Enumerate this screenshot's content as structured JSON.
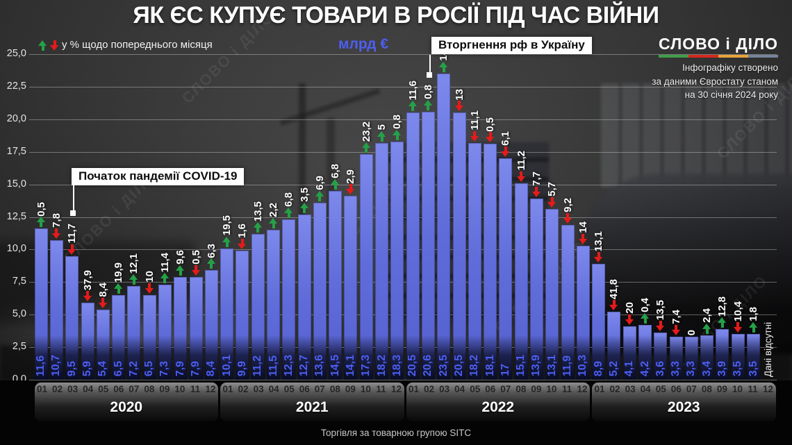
{
  "title": "ЯК ЄС КУПУЄ ТОВАРИ В РОСІЇ ПІД ЧАС ВІЙНИ",
  "legend": {
    "pct_note": "у % щодо попереднього місяця",
    "unit_label": "млрд €"
  },
  "logo": {
    "text": "СЛОВО і ДІЛО",
    "underline_colors": [
      "#3f9e4a",
      "#d6281e",
      "#e8a33b",
      "#76839b"
    ]
  },
  "source_note": {
    "lines": [
      "Інфографіку створено",
      "за даними Євростату станом",
      "на 30 січня 2024 року"
    ]
  },
  "annotations": {
    "covid": "Початок пандемії COVID-19",
    "invasion": "Вторгнення рф в Україну"
  },
  "footer": "Торгівля за товарною групою SITC",
  "colors": {
    "bar": "#5f6cd9",
    "up_arrow": "#24a148",
    "down_arrow": "#e51a1a",
    "value_text": "#4d5ef2",
    "unit_text": "#4d5ff0"
  },
  "chart_data": {
    "type": "bar",
    "title": "ЯК ЄС КУПУЄ ТОВАРИ В РОСІЇ ПІД ЧАС ВІЙНИ",
    "unit": "млрд €",
    "pct_note": "у % щодо попереднього місяця",
    "ylim": [
      0,
      25
    ],
    "ytick_step": 2.5,
    "yticks": [
      "25,0",
      "22,5",
      "20,0",
      "17,5",
      "15,0",
      "12,5",
      "10,0",
      "7,5",
      "5,0",
      "2,5",
      "0,0"
    ],
    "grid": true,
    "legend_position": "top-left",
    "no_data_label": "Дані відсутні",
    "months": [
      "01",
      "02",
      "03",
      "04",
      "05",
      "06",
      "07",
      "08",
      "09",
      "10",
      "11",
      "12"
    ],
    "groups": [
      {
        "year": "2020",
        "values": [
          11.6,
          10.7,
          9.5,
          5.9,
          5.4,
          6.5,
          7.2,
          6.5,
          7.3,
          7.9,
          7.9,
          8.4
        ],
        "value_labels": [
          "11,6",
          "10,7",
          "9,5",
          "5,9",
          "5,4",
          "6,5",
          "7,2",
          "6,5",
          "7,3",
          "7,9",
          "7,9",
          "8,4"
        ],
        "pct": [
          {
            "label": "0,5",
            "dir": "up"
          },
          {
            "label": "7,8",
            "dir": "down"
          },
          {
            "label": "11,7",
            "dir": "down"
          },
          {
            "label": "37,9",
            "dir": "down"
          },
          {
            "label": "8,4",
            "dir": "down"
          },
          {
            "label": "19,9",
            "dir": "up"
          },
          {
            "label": "12,1",
            "dir": "up"
          },
          {
            "label": "10",
            "dir": "down"
          },
          {
            "label": "11,4",
            "dir": "up"
          },
          {
            "label": "9,6",
            "dir": "up"
          },
          {
            "label": "0,5",
            "dir": "down"
          },
          {
            "label": "6,3",
            "dir": "up"
          }
        ]
      },
      {
        "year": "2021",
        "values": [
          10.1,
          9.9,
          11.2,
          11.5,
          12.3,
          12.7,
          13.6,
          14.5,
          14.1,
          17.3,
          18.2,
          18.3
        ],
        "value_labels": [
          "10,1",
          "9,9",
          "11,2",
          "11,5",
          "12,3",
          "12,7",
          "13,6",
          "14,5",
          "14,1",
          "17,3",
          "18,2",
          "18,3"
        ],
        "pct": [
          {
            "label": "19,5",
            "dir": "up"
          },
          {
            "label": "1,6",
            "dir": "down"
          },
          {
            "label": "13,5",
            "dir": "up"
          },
          {
            "label": "2,2",
            "dir": "up"
          },
          {
            "label": "6,8",
            "dir": "up"
          },
          {
            "label": "3,5",
            "dir": "up"
          },
          {
            "label": "6,9",
            "dir": "up"
          },
          {
            "label": "6,8",
            "dir": "up"
          },
          {
            "label": "2,9",
            "dir": "down"
          },
          {
            "label": "23,2",
            "dir": "up"
          },
          {
            "label": "5",
            "dir": "up"
          },
          {
            "label": "0,8",
            "dir": "up"
          }
        ]
      },
      {
        "year": "2022",
        "values": [
          20.5,
          20.6,
          23.5,
          20.5,
          18.2,
          18.1,
          17,
          15.1,
          13.9,
          13.1,
          11.9,
          10.3
        ],
        "value_labels": [
          "20,5",
          "20,6",
          "23,5",
          "20,5",
          "18,2",
          "18,1",
          "17",
          "15,1",
          "13,9",
          "13,1",
          "11,9",
          "10,3"
        ],
        "pct": [
          {
            "label": "11,6",
            "dir": "up"
          },
          {
            "label": "0,8",
            "dir": "up"
          },
          {
            "label": "14",
            "dir": "up"
          },
          {
            "label": "13",
            "dir": "down"
          },
          {
            "label": "11,1",
            "dir": "down"
          },
          {
            "label": "0,5",
            "dir": "down"
          },
          {
            "label": "6,1",
            "dir": "down"
          },
          {
            "label": "11,2",
            "dir": "down"
          },
          {
            "label": "7,7",
            "dir": "down"
          },
          {
            "label": "5,7",
            "dir": "down"
          },
          {
            "label": "9,2",
            "dir": "down"
          },
          {
            "label": "14",
            "dir": "down"
          }
        ]
      },
      {
        "year": "2023",
        "values": [
          8.9,
          5.2,
          4.1,
          4.2,
          3.6,
          3.3,
          3.3,
          3.4,
          3.9,
          3.5,
          3.5,
          null
        ],
        "value_labels": [
          "8,9",
          "5,2",
          "4,1",
          "4,2",
          "3,6",
          "3,3",
          "3,3",
          "3,4",
          "3,9",
          "3,5",
          "3,5",
          ""
        ],
        "pct": [
          {
            "label": "13,1",
            "dir": "down"
          },
          {
            "label": "41,8",
            "dir": "down"
          },
          {
            "label": "20",
            "dir": "down"
          },
          {
            "label": "0,4",
            "dir": "up"
          },
          {
            "label": "13,5",
            "dir": "down"
          },
          {
            "label": "7,4",
            "dir": "down"
          },
          {
            "label": "0",
            "dir": "none"
          },
          {
            "label": "2,4",
            "dir": "up"
          },
          {
            "label": "12,8",
            "dir": "up"
          },
          {
            "label": "10,4",
            "dir": "down"
          },
          {
            "label": "1,8",
            "dir": "up"
          },
          null
        ]
      }
    ]
  }
}
